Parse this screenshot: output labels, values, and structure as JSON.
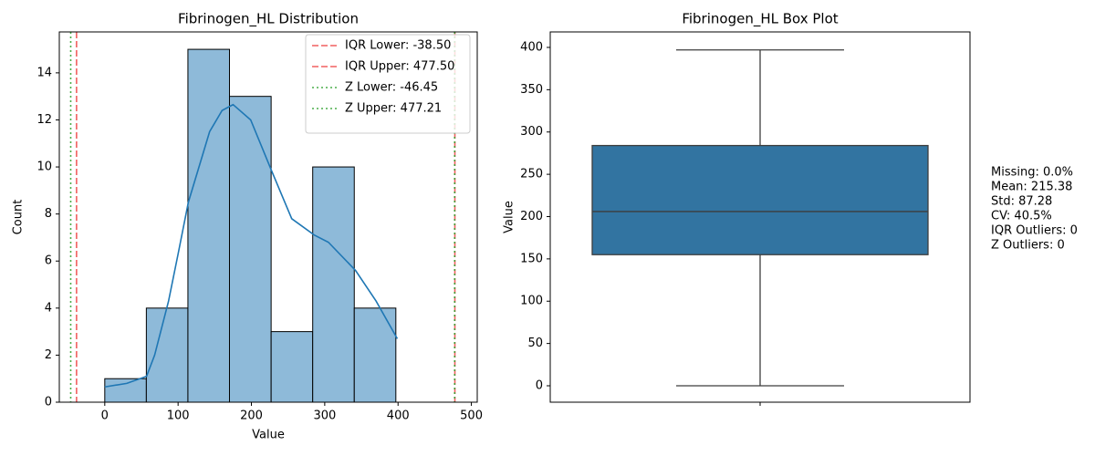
{
  "chart_data": [
    {
      "type": "histogram",
      "title": "Fibrinogen_HL Distribution",
      "xlabel": "Value",
      "ylabel": "Count",
      "bins": [
        0,
        56.7,
        113.4,
        170.1,
        226.9,
        283.6,
        340.3,
        397
      ],
      "counts": [
        1,
        4,
        15,
        13,
        3,
        10,
        4
      ],
      "color": "#8ebad9",
      "kde": {
        "x": [
          0,
          30,
          57,
          68,
          87,
          100,
          114,
          143,
          160,
          175,
          199,
          228,
          255,
          286,
          305,
          342,
          370,
          399
        ],
        "values": [
          0.65,
          0.8,
          1.1,
          2.0,
          4.3,
          6.3,
          8.5,
          11.5,
          12.4,
          12.65,
          12.0,
          9.8,
          7.8,
          7.1,
          6.8,
          5.6,
          4.3,
          2.7
        ],
        "color": "#1f77b4"
      },
      "lines": [
        {
          "label": "IQR Lower: -38.50",
          "value": -38.5,
          "color": "#ef4444",
          "style": "dashed"
        },
        {
          "label": "IQR Upper: 477.50",
          "value": 477.5,
          "color": "#ef4444",
          "style": "dashed"
        },
        {
          "label": "Z Lower: -46.45",
          "value": -46.45,
          "color": "#2ca02c",
          "style": "dotted"
        },
        {
          "label": "Z Upper: 477.21",
          "value": 477.21,
          "color": "#2ca02c",
          "style": "dotted"
        }
      ],
      "xlim": [
        -62,
        508
      ],
      "ylim": [
        0,
        15.74
      ],
      "xticks": [
        0,
        100,
        200,
        300,
        400,
        500
      ],
      "yticks": [
        0,
        2,
        4,
        6,
        8,
        10,
        12,
        14
      ],
      "legend": "upper right"
    },
    {
      "type": "box",
      "title": "Fibrinogen_HL Box Plot",
      "ylabel": "Value",
      "q1": 155,
      "median": 206,
      "q3": 284,
      "whisker_low": 0,
      "whisker_high": 397,
      "color": "#3274a1",
      "ylim": [
        -19.4,
        418.3
      ],
      "yticks": [
        0,
        50,
        100,
        150,
        200,
        250,
        300,
        350,
        400
      ],
      "annotations": [
        "Missing: 0.0%",
        "Mean: 215.38",
        "Std: 87.28",
        "CV: 40.5%",
        "IQR Outliers: 0",
        "Z Outliers: 0"
      ]
    }
  ]
}
